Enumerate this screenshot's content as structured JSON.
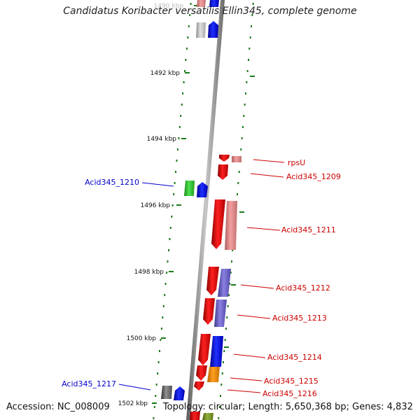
{
  "title": "Candidatus Koribacter versatilis Ellin345, complete genome",
  "accession_label": "Accession: NC_008009",
  "topology_label": "Topology: circular; Length: 5,650,368 bp; Genes: 4,832",
  "tick_labels": [
    "1490 kbp",
    "1492 kbp",
    "1494 kbp",
    "1496 kbp",
    "1498 kbp",
    "1500 kbp",
    "1502 kbp"
  ],
  "colors": {
    "backbone": "#8c8c8c",
    "tick_green": "#1a7a1a",
    "forward_label": "#cc0000",
    "reverse_label": "#0000cc"
  },
  "genes_forward": [
    {
      "name": "rpsU",
      "color": "#cc0000"
    },
    {
      "name": "Acid345_1209",
      "color": "#cc0000"
    },
    {
      "name": "Acid345_1211",
      "color": "#cc0000"
    },
    {
      "name": "Acid345_1212",
      "color": "#cc0000"
    },
    {
      "name": "Acid345_1213",
      "color": "#cc0000"
    },
    {
      "name": "Acid345_1214",
      "color": "#cc0000"
    },
    {
      "name": "Acid345_1215",
      "color": "#cc0000"
    },
    {
      "name": "Acid345_1216",
      "color": "#cc0000"
    }
  ],
  "genes_reverse": [
    {
      "name": "Acid345_1210",
      "color": "#0000cc"
    },
    {
      "name": "Acid345_1217",
      "color": "#0000cc"
    }
  ]
}
